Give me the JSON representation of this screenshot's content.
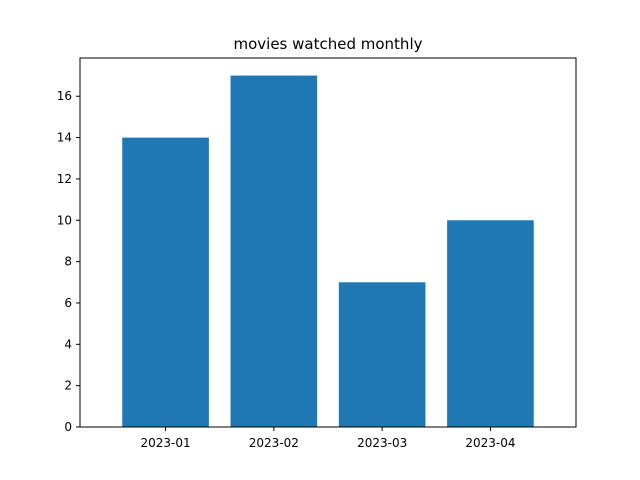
{
  "chart_data": {
    "type": "bar",
    "title": "movies watched monthly",
    "xlabel": "",
    "ylabel": "",
    "categories": [
      "2023-01",
      "2023-02",
      "2023-03",
      "2023-04"
    ],
    "values": [
      14,
      17,
      7,
      10
    ],
    "ylim": [
      0,
      17.85
    ],
    "yticks": [
      0,
      2,
      4,
      6,
      8,
      10,
      12,
      14,
      16
    ],
    "grid": false,
    "legend": "none",
    "bar_color": "#1f77b4"
  }
}
